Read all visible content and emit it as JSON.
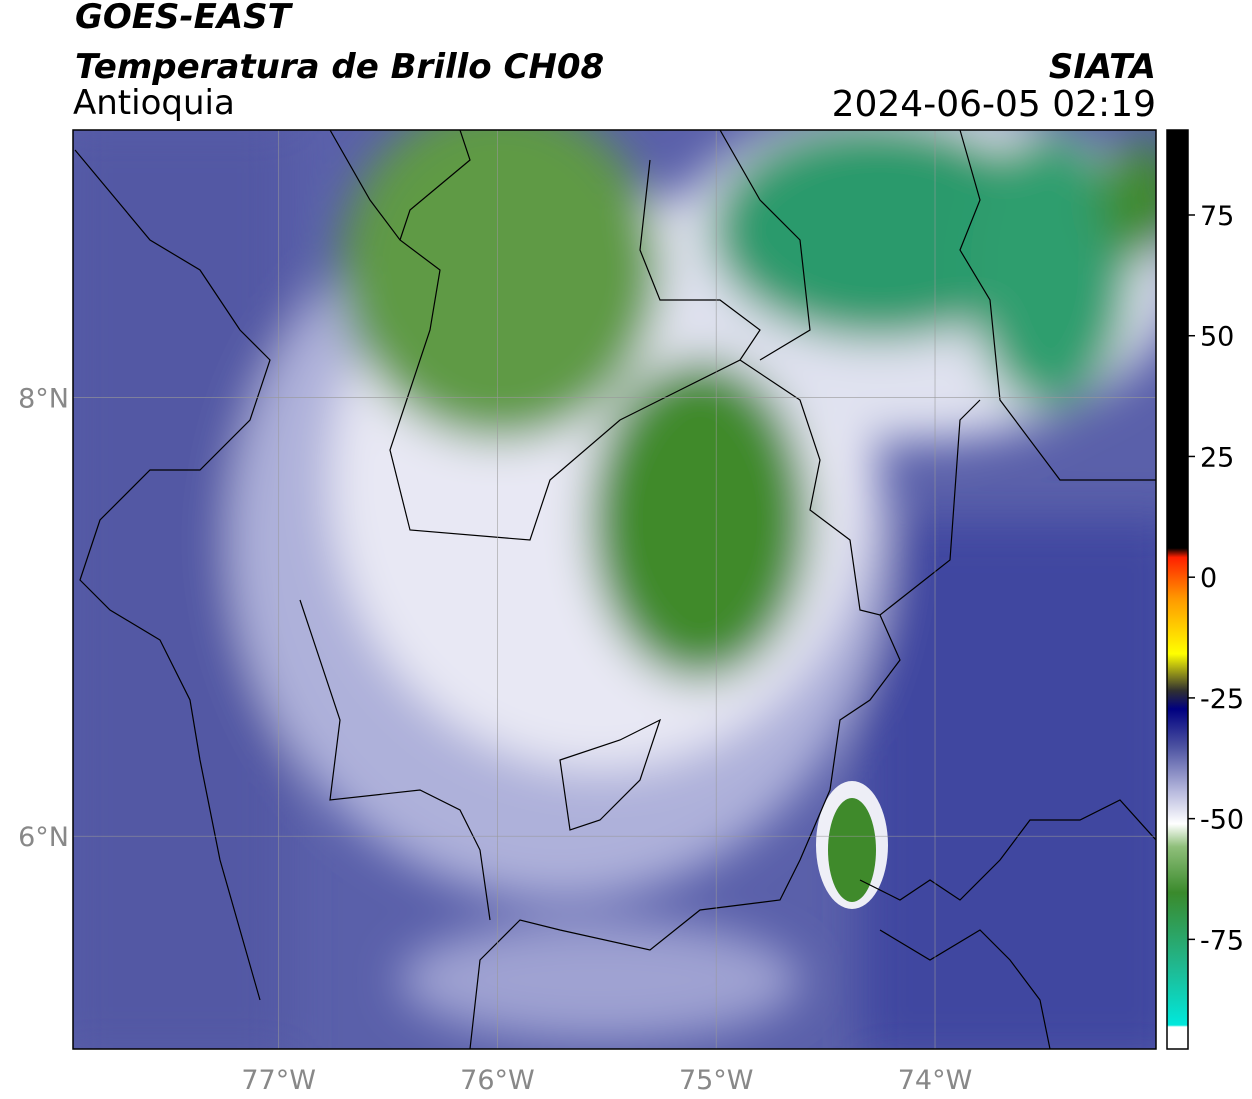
{
  "header": {
    "title": "GOES-EAST",
    "subtitle": "Temperatura de Brillo CH08",
    "region": "Antioquia",
    "source": "SIATA",
    "datetime": "2024-06-05 02:19"
  },
  "map": {
    "xlim": [
      -77.94,
      -72.99
    ],
    "ylim": [
      5.03,
      9.22
    ],
    "xticks": [
      {
        "value": -77,
        "label": "77°W"
      },
      {
        "value": -76,
        "label": "76°W"
      },
      {
        "value": -75,
        "label": "75°W"
      },
      {
        "value": -74,
        "label": "74°W"
      }
    ],
    "yticks": [
      {
        "value": 6,
        "label": "6°N"
      },
      {
        "value": 8,
        "label": "8°N"
      }
    ],
    "grid": true
  },
  "colorbar": {
    "lim": [
      -97.7,
      92.6
    ],
    "ticks": [
      75,
      50,
      25,
      0,
      -25,
      -50,
      -75
    ]
  }
}
